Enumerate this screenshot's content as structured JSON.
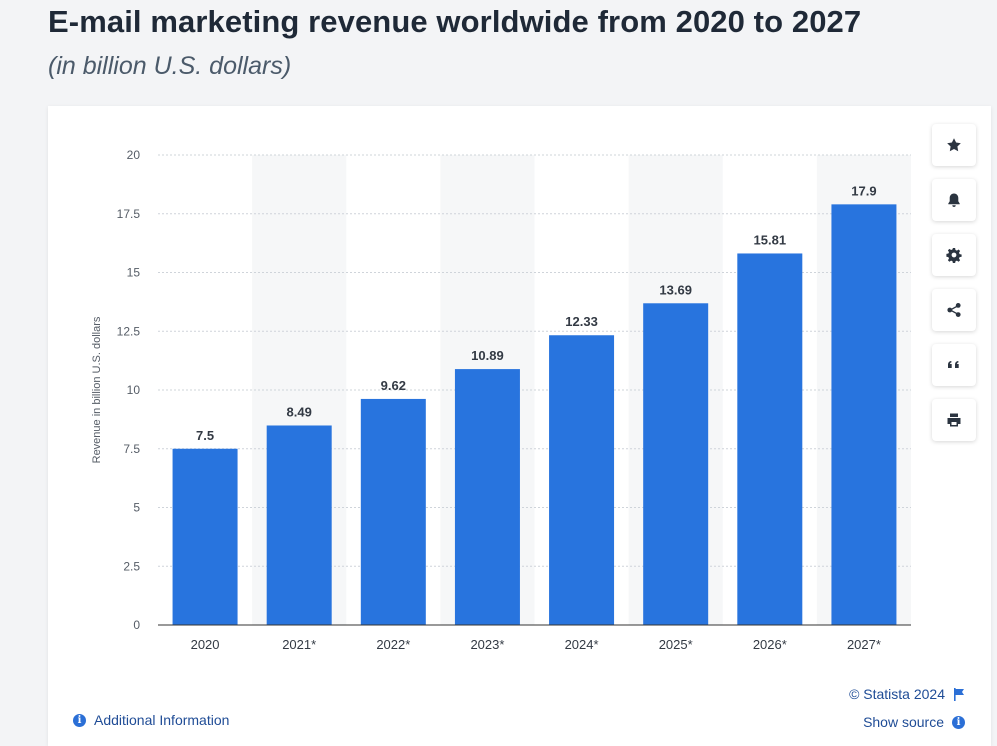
{
  "header": {
    "title": "E-mail marketing revenue worldwide from 2020 to 2027",
    "subtitle": "(in billion U.S. dollars)"
  },
  "chart_data": {
    "type": "bar",
    "title": "",
    "xlabel": "",
    "ylabel": "Revenue in billion U.S. dollars",
    "categories": [
      "2020",
      "2021*",
      "2022*",
      "2023*",
      "2024*",
      "2025*",
      "2026*",
      "2027*"
    ],
    "values": [
      7.5,
      8.49,
      9.62,
      10.89,
      12.33,
      13.69,
      15.81,
      17.9
    ],
    "value_labels": [
      "7.5",
      "8.49",
      "9.62",
      "10.89",
      "12.33",
      "13.69",
      "15.81",
      "17.9"
    ],
    "ylim": [
      0,
      20
    ],
    "yticks": [
      0,
      2.5,
      5,
      7.5,
      10,
      12.5,
      15,
      17.5,
      20
    ],
    "ytick_labels": [
      "0",
      "2.5",
      "5",
      "7.5",
      "10",
      "12.5",
      "15",
      "17.5",
      "20"
    ],
    "grid": true,
    "bar_color": "#2874de",
    "band_color": "#f6f7f8"
  },
  "toolbar": {
    "buttons": [
      {
        "name": "favorite-button",
        "icon": "star-icon"
      },
      {
        "name": "notification-button",
        "icon": "bell-icon"
      },
      {
        "name": "settings-button",
        "icon": "gear-icon"
      },
      {
        "name": "share-button",
        "icon": "share-icon"
      },
      {
        "name": "cite-button",
        "icon": "quote-icon"
      },
      {
        "name": "print-button",
        "icon": "printer-icon"
      }
    ]
  },
  "footer": {
    "copyright": "© Statista 2024",
    "show_source": "Show source",
    "additional_info": "Additional Information"
  }
}
